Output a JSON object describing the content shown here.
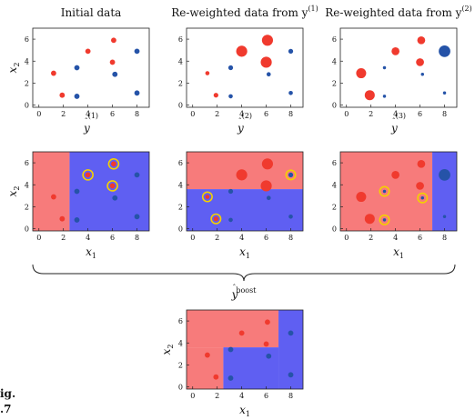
{
  "colors": {
    "red_class": "#f03a2e",
    "blue_class": "#2553a8",
    "red_region": "#f77b7b",
    "blue_region": "#5f5ff2",
    "highlight_ring": "#f4d000"
  },
  "corner_text": {
    "line1": "ig.",
    "line2": ".7"
  },
  "panels": [
    {
      "id": "initial",
      "title": "Initial data",
      "title_base": "",
      "title_sup": "",
      "xlabel_base": "y",
      "xlabel_sup": "(1)",
      "ylabel_base": "x",
      "ylabel_sub": "2",
      "xticks": [
        "0",
        "2",
        "4",
        "6",
        "8"
      ],
      "yticks": [
        "0",
        "2",
        "4",
        "6"
      ],
      "points": [
        {
          "x": 1.2,
          "y": 2.9,
          "cls": "red",
          "w": 1
        },
        {
          "x": 1.9,
          "y": 0.9,
          "cls": "red",
          "w": 1
        },
        {
          "x": 4.0,
          "y": 4.9,
          "cls": "red",
          "w": 1
        },
        {
          "x": 6.1,
          "y": 5.9,
          "cls": "red",
          "w": 1
        },
        {
          "x": 6.0,
          "y": 3.9,
          "cls": "red",
          "w": 1
        },
        {
          "x": 3.1,
          "y": 3.4,
          "cls": "blue",
          "w": 1
        },
        {
          "x": 3.1,
          "y": 0.8,
          "cls": "blue",
          "w": 1
        },
        {
          "x": 6.2,
          "y": 2.8,
          "cls": "blue",
          "w": 1
        },
        {
          "x": 8.0,
          "y": 4.9,
          "cls": "blue",
          "w": 1
        },
        {
          "x": 8.0,
          "y": 1.1,
          "cls": "blue",
          "w": 1
        }
      ]
    },
    {
      "id": "reweighted-1",
      "title": "",
      "title_base": "Re-weighted data from y",
      "title_sup": "(1)",
      "xlabel_base": "y",
      "xlabel_sup": "(2)",
      "ylabel_base": "",
      "ylabel_sub": "",
      "xticks": [
        "0",
        "2",
        "4",
        "6",
        "8"
      ],
      "yticks": [
        "0",
        "2",
        "4",
        "6"
      ],
      "points": [
        {
          "x": 1.2,
          "y": 2.9,
          "cls": "red",
          "w": 0.8
        },
        {
          "x": 1.9,
          "y": 0.9,
          "cls": "red",
          "w": 0.9
        },
        {
          "x": 4.0,
          "y": 4.9,
          "cls": "red",
          "w": 2.1
        },
        {
          "x": 6.1,
          "y": 5.9,
          "cls": "red",
          "w": 2.1
        },
        {
          "x": 6.0,
          "y": 3.9,
          "cls": "red",
          "w": 2.1
        },
        {
          "x": 3.1,
          "y": 3.4,
          "cls": "blue",
          "w": 0.9
        },
        {
          "x": 3.1,
          "y": 0.8,
          "cls": "blue",
          "w": 0.8
        },
        {
          "x": 6.2,
          "y": 2.8,
          "cls": "blue",
          "w": 0.8
        },
        {
          "x": 8.0,
          "y": 4.9,
          "cls": "blue",
          "w": 0.9
        },
        {
          "x": 8.0,
          "y": 1.1,
          "cls": "blue",
          "w": 0.8
        }
      ]
    },
    {
      "id": "reweighted-2",
      "title": "",
      "title_base": "Re-weighted data from y",
      "title_sup": "(2)",
      "xlabel_base": "y",
      "xlabel_sup": "(3)",
      "ylabel_base": "",
      "ylabel_sub": "",
      "xticks": [
        "0",
        "2",
        "4",
        "6",
        "8"
      ],
      "yticks": [
        "0",
        "2",
        "4",
        "6"
      ],
      "points": [
        {
          "x": 1.2,
          "y": 2.9,
          "cls": "red",
          "w": 1.9
        },
        {
          "x": 1.9,
          "y": 0.9,
          "cls": "red",
          "w": 1.9
        },
        {
          "x": 4.0,
          "y": 4.9,
          "cls": "red",
          "w": 1.5
        },
        {
          "x": 6.1,
          "y": 5.9,
          "cls": "red",
          "w": 1.5
        },
        {
          "x": 6.0,
          "y": 3.9,
          "cls": "red",
          "w": 1.5
        },
        {
          "x": 3.1,
          "y": 3.4,
          "cls": "blue",
          "w": 0.6
        },
        {
          "x": 3.1,
          "y": 0.8,
          "cls": "blue",
          "w": 0.6
        },
        {
          "x": 6.2,
          "y": 2.8,
          "cls": "blue",
          "w": 0.6
        },
        {
          "x": 8.0,
          "y": 4.9,
          "cls": "blue",
          "w": 2.2
        },
        {
          "x": 8.0,
          "y": 1.1,
          "cls": "blue",
          "w": 0.6
        }
      ]
    },
    {
      "id": "stump-1",
      "title": "",
      "title_base": "",
      "title_sup": "",
      "xlabel_base": "x",
      "xlabel_sub": "1",
      "ylabel_base": "x",
      "ylabel_sub": "2",
      "xticks": [
        "0",
        "2",
        "4",
        "6",
        "8"
      ],
      "yticks": [
        "0",
        "2",
        "4",
        "6"
      ],
      "regions": [
        {
          "x0": -0.5,
          "x1": 2.5,
          "y0": -0.2,
          "y1": 7,
          "cls": "red"
        },
        {
          "x0": 2.5,
          "x1": 9,
          "y0": -0.2,
          "y1": 7,
          "cls": "blue"
        }
      ],
      "points": [
        {
          "x": 1.2,
          "y": 2.9,
          "cls": "red",
          "w": 1
        },
        {
          "x": 1.9,
          "y": 0.9,
          "cls": "red",
          "w": 1
        },
        {
          "x": 4.0,
          "y": 4.9,
          "cls": "red",
          "w": 1,
          "ring": true
        },
        {
          "x": 6.1,
          "y": 5.9,
          "cls": "red",
          "w": 1,
          "ring": true
        },
        {
          "x": 6.0,
          "y": 3.9,
          "cls": "red",
          "w": 1,
          "ring": true
        },
        {
          "x": 3.1,
          "y": 3.4,
          "cls": "blue",
          "w": 1
        },
        {
          "x": 3.1,
          "y": 0.8,
          "cls": "blue",
          "w": 1
        },
        {
          "x": 6.2,
          "y": 2.8,
          "cls": "blue",
          "w": 1
        },
        {
          "x": 8.0,
          "y": 4.9,
          "cls": "blue",
          "w": 1
        },
        {
          "x": 8.0,
          "y": 1.1,
          "cls": "blue",
          "w": 1
        }
      ]
    },
    {
      "id": "stump-2",
      "title": "",
      "title_base": "",
      "title_sup": "",
      "xlabel_base": "x",
      "xlabel_sub": "1",
      "ylabel_base": "",
      "ylabel_sub": "",
      "xticks": [
        "0",
        "2",
        "4",
        "6",
        "8"
      ],
      "yticks": [
        "0",
        "2",
        "4",
        "6"
      ],
      "regions": [
        {
          "x0": -0.5,
          "x1": 9,
          "y0": 3.6,
          "y1": 7,
          "cls": "red"
        },
        {
          "x0": -0.5,
          "x1": 9,
          "y0": -0.2,
          "y1": 3.6,
          "cls": "blue"
        }
      ],
      "points": [
        {
          "x": 1.2,
          "y": 2.9,
          "cls": "red",
          "w": 0.8,
          "ring": true
        },
        {
          "x": 1.9,
          "y": 0.9,
          "cls": "red",
          "w": 0.9,
          "ring": true
        },
        {
          "x": 4.0,
          "y": 4.9,
          "cls": "red",
          "w": 2.1
        },
        {
          "x": 6.1,
          "y": 5.9,
          "cls": "red",
          "w": 2.1
        },
        {
          "x": 6.0,
          "y": 3.9,
          "cls": "red",
          "w": 2.1
        },
        {
          "x": 3.1,
          "y": 3.4,
          "cls": "blue",
          "w": 0.9
        },
        {
          "x": 3.1,
          "y": 0.8,
          "cls": "blue",
          "w": 0.8
        },
        {
          "x": 6.2,
          "y": 2.8,
          "cls": "blue",
          "w": 0.8
        },
        {
          "x": 8.0,
          "y": 4.9,
          "cls": "blue",
          "w": 0.9,
          "ring": true
        },
        {
          "x": 8.0,
          "y": 1.1,
          "cls": "blue",
          "w": 0.8
        }
      ]
    },
    {
      "id": "stump-3",
      "title": "",
      "title_base": "",
      "title_sup": "",
      "xlabel_base": "x",
      "xlabel_sub": "1",
      "ylabel_base": "",
      "ylabel_sub": "",
      "xticks": [
        "0",
        "2",
        "4",
        "6",
        "8"
      ],
      "yticks": [
        "0",
        "2",
        "4",
        "6"
      ],
      "regions": [
        {
          "x0": -0.5,
          "x1": 7.0,
          "y0": -0.2,
          "y1": 7,
          "cls": "red"
        },
        {
          "x0": 7.0,
          "x1": 9,
          "y0": -0.2,
          "y1": 7,
          "cls": "blue"
        }
      ],
      "points": [
        {
          "x": 1.2,
          "y": 2.9,
          "cls": "red",
          "w": 1.9
        },
        {
          "x": 1.9,
          "y": 0.9,
          "cls": "red",
          "w": 1.9
        },
        {
          "x": 4.0,
          "y": 4.9,
          "cls": "red",
          "w": 1.5
        },
        {
          "x": 6.1,
          "y": 5.9,
          "cls": "red",
          "w": 1.5
        },
        {
          "x": 6.0,
          "y": 3.9,
          "cls": "red",
          "w": 1.5
        },
        {
          "x": 3.1,
          "y": 3.4,
          "cls": "blue",
          "w": 0.6,
          "ring": true
        },
        {
          "x": 3.1,
          "y": 0.8,
          "cls": "blue",
          "w": 0.6,
          "ring": true
        },
        {
          "x": 6.2,
          "y": 2.8,
          "cls": "blue",
          "w": 0.6,
          "ring": true
        },
        {
          "x": 8.0,
          "y": 4.9,
          "cls": "blue",
          "w": 2.2
        },
        {
          "x": 8.0,
          "y": 1.1,
          "cls": "blue",
          "w": 0.6
        }
      ]
    },
    {
      "id": "boost",
      "title": "",
      "title_base": "",
      "title_sup": "",
      "xlabel_base": "x",
      "xlabel_sub": "1",
      "ylabel_base": "x",
      "ylabel_sub": "2",
      "xticks": [
        "0",
        "2",
        "4",
        "6",
        "8"
      ],
      "yticks": [
        "0",
        "2",
        "4",
        "6"
      ],
      "regions": [
        {
          "x0": -0.5,
          "x1": 7.0,
          "y0": 3.6,
          "y1": 7,
          "cls": "red"
        },
        {
          "x0": -0.5,
          "x1": 2.5,
          "y0": -0.2,
          "y1": 3.6,
          "cls": "red"
        },
        {
          "x0": 2.5,
          "x1": 7.0,
          "y0": -0.2,
          "y1": 3.6,
          "cls": "blue"
        },
        {
          "x0": 7.0,
          "x1": 9,
          "y0": -0.2,
          "y1": 7,
          "cls": "blue"
        }
      ],
      "points": [
        {
          "x": 1.2,
          "y": 2.9,
          "cls": "red",
          "w": 1
        },
        {
          "x": 1.9,
          "y": 0.9,
          "cls": "red",
          "w": 1
        },
        {
          "x": 4.0,
          "y": 4.9,
          "cls": "red",
          "w": 1
        },
        {
          "x": 6.1,
          "y": 5.9,
          "cls": "red",
          "w": 1
        },
        {
          "x": 6.0,
          "y": 3.9,
          "cls": "red",
          "w": 1
        },
        {
          "x": 3.1,
          "y": 3.4,
          "cls": "blue",
          "w": 1
        },
        {
          "x": 3.1,
          "y": 0.8,
          "cls": "blue",
          "w": 1
        },
        {
          "x": 6.2,
          "y": 2.8,
          "cls": "blue",
          "w": 1
        },
        {
          "x": 8.0,
          "y": 4.9,
          "cls": "blue",
          "w": 1
        },
        {
          "x": 8.0,
          "y": 1.1,
          "cls": "blue",
          "w": 1
        }
      ]
    }
  ],
  "brace": {
    "label_base": "y",
    "label_sub": "boost"
  }
}
